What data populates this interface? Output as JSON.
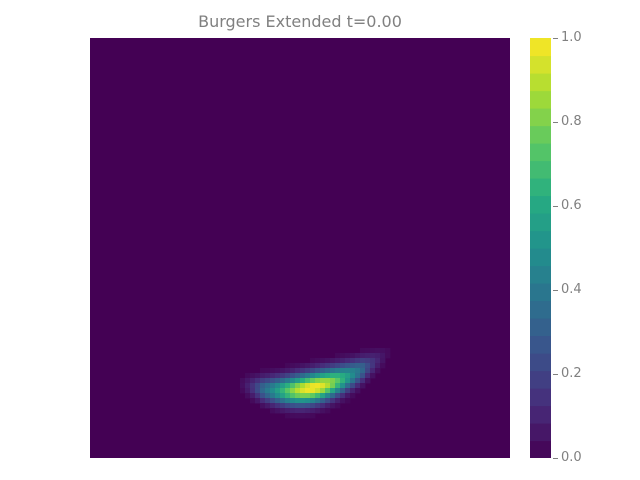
{
  "chart_data": {
    "type": "heatmap",
    "title": "Burgers Extended t=0.00",
    "xlabel": "",
    "ylabel": "",
    "colormap": "viridis",
    "value_range": [
      0.0,
      1.0
    ],
    "colorbar": {
      "ticks": [
        0.0,
        0.2,
        0.4,
        0.6,
        0.8,
        1.0
      ],
      "tick_labels": [
        "0.0",
        "0.2",
        "0.4",
        "0.6",
        "0.8",
        "1.0"
      ],
      "levels": 24
    },
    "background_value": 0.0,
    "feature": {
      "shape": "crescent-shaped field concentration",
      "peak_value": 1.0,
      "x_range": [
        0.35,
        0.72
      ],
      "y_range": [
        0.12,
        0.24
      ],
      "peak_x": 0.53,
      "peak_y": 0.16
    },
    "axes_visible": false,
    "grid": false
  }
}
